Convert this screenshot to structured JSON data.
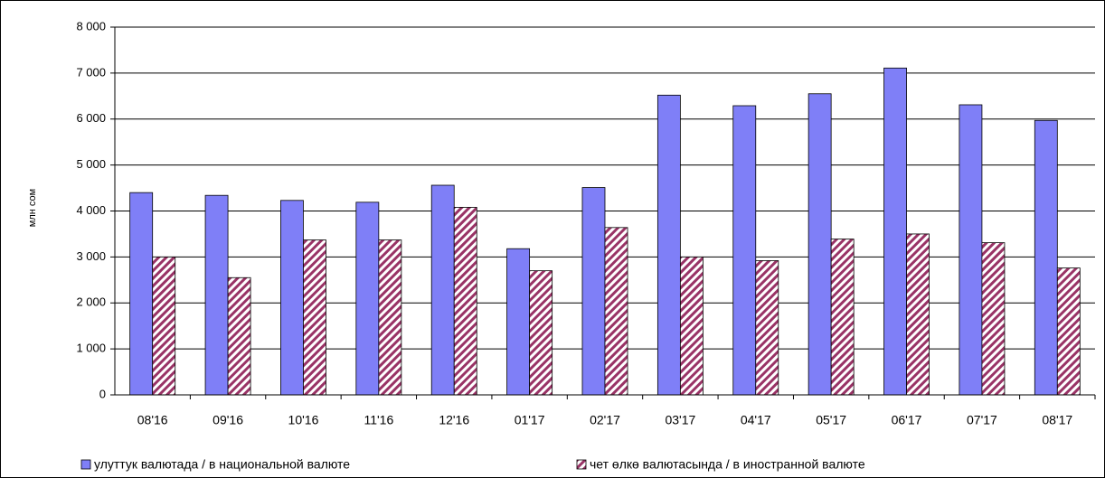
{
  "chart_data": {
    "type": "bar",
    "y_label": "млн сом",
    "categories": [
      "08'16",
      "09'16",
      "10'16",
      "11'16",
      "12'16",
      "01'17",
      "02'17",
      "03'17",
      "04'17",
      "05'17",
      "06'17",
      "07'17",
      "08'17"
    ],
    "series": [
      {
        "name": "улуттук валютада / в национальной валюте",
        "color": "#7f7ff7",
        "fill_style": "solid",
        "values": [
          4400,
          4340,
          4230,
          4190,
          4560,
          3180,
          4510,
          6520,
          6290,
          6550,
          7110,
          6310,
          5970
        ]
      },
      {
        "name": "чет өлкө валютасында / в иностранной валюте",
        "color": "#993366",
        "fill_style": "hatch",
        "values": [
          3000,
          2550,
          3370,
          3370,
          4080,
          2700,
          3640,
          3000,
          2920,
          3390,
          3500,
          3310,
          2760
        ]
      }
    ],
    "ylim": [
      0,
      8000
    ],
    "yticks": [
      0,
      {
        "value": 1000,
        "label": "1 000"
      },
      {
        "value": 2000,
        "label": "2 000"
      },
      {
        "value": 3000,
        "label": "3 000"
      },
      {
        "value": 4000,
        "label": "4 000"
      },
      {
        "value": 5000,
        "label": "5 000"
      },
      {
        "value": 6000,
        "label": "6 000"
      },
      {
        "value": 7000,
        "label": "7 000"
      },
      {
        "value": 8000,
        "label": "8 000"
      }
    ],
    "grid": true
  }
}
